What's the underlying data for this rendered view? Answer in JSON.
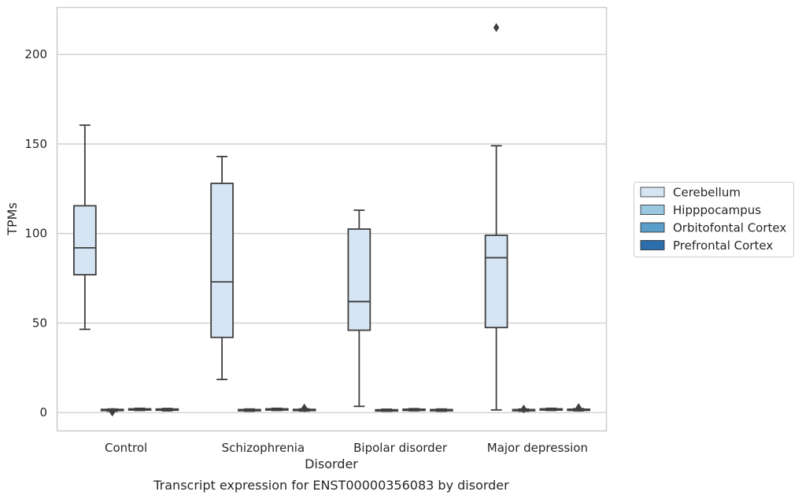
{
  "chart_data": {
    "type": "box",
    "title": "",
    "caption": "Transcript expression for ENST00000356083 by disorder",
    "xlabel": "Disorder",
    "ylabel": "TPMs",
    "categories": [
      "Control",
      "Schizophrenia",
      "Bipolar disorder",
      "Major depression"
    ],
    "ylim": [
      -10,
      226
    ],
    "yticks": [
      0,
      50,
      100,
      150,
      200
    ],
    "grid": "horizontal",
    "legend_position": "right",
    "series": [
      {
        "name": "Cerebellum",
        "color": "#d6e5f4",
        "boxes": [
          {
            "whislo": 46.5,
            "q1": 77,
            "median": 92,
            "q3": 115.5,
            "whishi": 160.5,
            "fliers": []
          },
          {
            "whislo": 18.5,
            "q1": 42,
            "median": 73,
            "q3": 128,
            "whishi": 143,
            "fliers": []
          },
          {
            "whislo": 3.5,
            "q1": 46,
            "median": 62,
            "q3": 102.5,
            "whishi": 113,
            "fliers": []
          },
          {
            "whislo": 1.5,
            "q1": 47.5,
            "median": 86.5,
            "q3": 99,
            "whishi": 149,
            "fliers": [
              215
            ]
          }
        ]
      },
      {
        "name": "Hipppocampus",
        "color": "#9ac8e0",
        "boxes": [
          {
            "whislo": 0.8,
            "q1": 1.2,
            "median": 1.5,
            "q3": 1.8,
            "whishi": 2.0,
            "fliers": [
              0.3
            ]
          },
          {
            "whislo": 0.8,
            "q1": 1.1,
            "median": 1.4,
            "q3": 1.7,
            "whishi": 2.0,
            "fliers": []
          },
          {
            "whislo": 0.8,
            "q1": 1.0,
            "median": 1.3,
            "q3": 1.6,
            "whishi": 1.9,
            "fliers": []
          },
          {
            "whislo": 0.8,
            "q1": 1.1,
            "median": 1.4,
            "q3": 1.7,
            "whishi": 2.0,
            "fliers": [
              2.0
            ]
          }
        ]
      },
      {
        "name": "Orbitofontal Cortex",
        "color": "#5a9ec9",
        "boxes": [
          {
            "whislo": 1.2,
            "q1": 1.5,
            "median": 1.8,
            "q3": 2.1,
            "whishi": 2.4,
            "fliers": []
          },
          {
            "whislo": 1.2,
            "q1": 1.5,
            "median": 1.8,
            "q3": 2.1,
            "whishi": 2.4,
            "fliers": []
          },
          {
            "whislo": 1.0,
            "q1": 1.3,
            "median": 1.6,
            "q3": 1.9,
            "whishi": 2.2,
            "fliers": []
          },
          {
            "whislo": 1.2,
            "q1": 1.5,
            "median": 1.8,
            "q3": 2.1,
            "whishi": 2.4,
            "fliers": []
          }
        ]
      },
      {
        "name": "Prefrontal Cortex",
        "color": "#2d6fac",
        "boxes": [
          {
            "whislo": 1.0,
            "q1": 1.4,
            "median": 1.7,
            "q3": 2.0,
            "whishi": 2.3,
            "fliers": []
          },
          {
            "whislo": 0.9,
            "q1": 1.2,
            "median": 1.5,
            "q3": 1.8,
            "whishi": 2.1,
            "fliers": [
              2.6
            ]
          },
          {
            "whislo": 0.8,
            "q1": 1.1,
            "median": 1.4,
            "q3": 1.7,
            "whishi": 2.0,
            "fliers": []
          },
          {
            "whislo": 1.0,
            "q1": 1.3,
            "median": 1.6,
            "q3": 1.9,
            "whishi": 2.2,
            "fliers": [
              2.8
            ]
          }
        ]
      }
    ]
  }
}
